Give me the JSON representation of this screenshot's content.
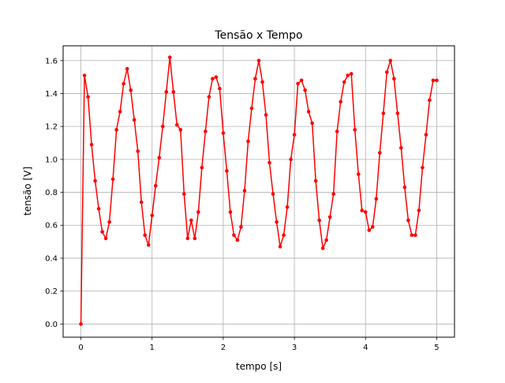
{
  "chart_data": {
    "type": "line",
    "title": "Tensão x Tempo",
    "xlabel": "tempo [s]",
    "ylabel": "tensão [V]",
    "xlim": [
      -0.25,
      5.25
    ],
    "ylim": [
      -0.08,
      1.69
    ],
    "grid": true,
    "x_ticks": [
      0,
      1,
      2,
      3,
      4,
      5
    ],
    "y_ticks": [
      0.0,
      0.2,
      0.4,
      0.6,
      0.8,
      1.0,
      1.2,
      1.4,
      1.6
    ],
    "x_tick_labels": [
      "0",
      "1",
      "2",
      "3",
      "4",
      "5"
    ],
    "y_tick_labels": [
      "0.0",
      "0.2",
      "0.4",
      "0.6",
      "0.8",
      "1.0",
      "1.2",
      "1.4",
      "1.6"
    ],
    "series": [
      {
        "color": "#ff0000",
        "marker": "circle",
        "x": [
          0.0,
          0.05,
          0.1,
          0.15,
          0.2,
          0.25,
          0.3,
          0.35,
          0.4,
          0.45,
          0.5,
          0.55,
          0.6,
          0.65,
          0.7,
          0.75,
          0.8,
          0.85,
          0.9,
          0.95,
          1.0,
          1.05,
          1.1,
          1.15,
          1.2,
          1.25,
          1.3,
          1.35,
          1.4,
          1.45,
          1.5,
          1.55,
          1.6,
          1.65,
          1.7,
          1.75,
          1.8,
          1.85,
          1.9,
          1.95,
          2.0,
          2.05,
          2.1,
          2.15,
          2.2,
          2.25,
          2.3,
          2.35,
          2.4,
          2.45,
          2.5,
          2.55,
          2.6,
          2.65,
          2.7,
          2.75,
          2.8,
          2.85,
          2.9,
          2.95,
          3.0,
          3.05,
          3.1,
          3.15,
          3.2,
          3.25,
          3.3,
          3.35,
          3.4,
          3.45,
          3.5,
          3.55,
          3.6,
          3.65,
          3.7,
          3.75,
          3.8,
          3.85,
          3.9,
          3.95,
          4.0,
          4.05,
          4.1,
          4.15,
          4.2,
          4.25,
          4.3,
          4.35,
          4.4,
          4.45,
          4.5,
          4.55,
          4.6,
          4.65,
          4.7,
          4.75,
          4.8,
          4.85,
          4.9,
          4.95,
          5.0
        ],
        "y": [
          0.0,
          1.51,
          1.38,
          1.09,
          0.87,
          0.7,
          0.56,
          0.52,
          0.62,
          0.88,
          1.18,
          1.29,
          1.46,
          1.55,
          1.42,
          1.24,
          1.05,
          0.74,
          0.54,
          0.48,
          0.66,
          0.84,
          1.01,
          1.2,
          1.41,
          1.62,
          1.41,
          1.21,
          1.18,
          0.79,
          0.52,
          0.63,
          0.52,
          0.68,
          0.95,
          1.17,
          1.38,
          1.49,
          1.5,
          1.43,
          1.16,
          0.93,
          0.68,
          0.54,
          0.51,
          0.59,
          0.81,
          1.11,
          1.31,
          1.49,
          1.6,
          1.47,
          1.27,
          0.98,
          0.79,
          0.62,
          0.47,
          0.54,
          0.71,
          1.0,
          1.15,
          1.46,
          1.48,
          1.42,
          1.29,
          1.22,
          0.87,
          0.63,
          0.46,
          0.51,
          0.65,
          0.79,
          1.17,
          1.35,
          1.47,
          1.51,
          1.52,
          1.18,
          0.91,
          0.69,
          0.68,
          0.57,
          0.59,
          0.76,
          1.04,
          1.28,
          1.53,
          1.6,
          1.49,
          1.28,
          1.07,
          0.83,
          0.63,
          0.54,
          0.54,
          0.69,
          0.95,
          1.15,
          1.36,
          1.48,
          1.48
        ]
      }
    ]
  }
}
